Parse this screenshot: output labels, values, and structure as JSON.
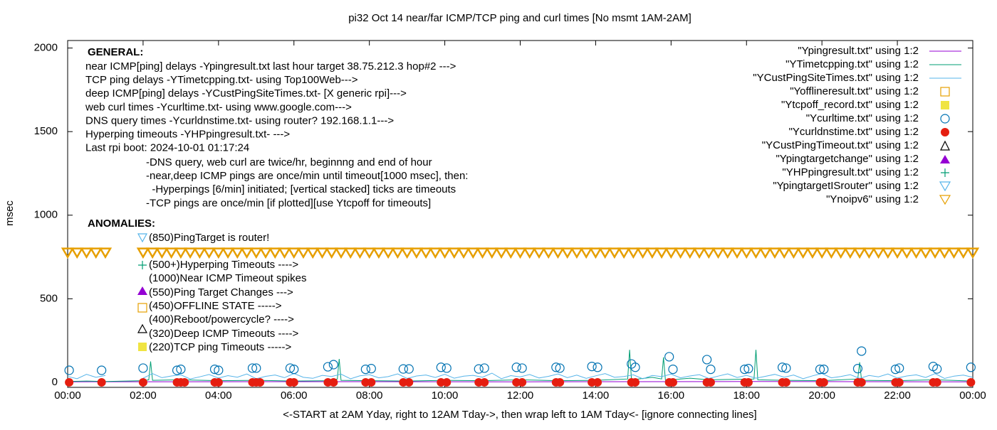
{
  "chart_data": {
    "type": "line",
    "title": "pi32 Oct 14  near/far ICMP/TCP ping and curl times [No msmt 1AM-2AM]",
    "xlabel": "<-START at 2AM Yday, right to 12AM Tday->, then wrap left to 1AM Tday<- [ignore connecting lines]",
    "ylabel": "msec",
    "xlim": [
      0,
      24
    ],
    "ylim": [
      -30,
      2045
    ],
    "xticks": [
      {
        "value": 0,
        "label": "00:00"
      },
      {
        "value": 2,
        "label": "02:00"
      },
      {
        "value": 4,
        "label": "04:00"
      },
      {
        "value": 6,
        "label": "06:00"
      },
      {
        "value": 8,
        "label": "08:00"
      },
      {
        "value": 10,
        "label": "10:00"
      },
      {
        "value": 12,
        "label": "12:00"
      },
      {
        "value": 14,
        "label": "14:00"
      },
      {
        "value": 16,
        "label": "16:00"
      },
      {
        "value": 18,
        "label": "18:00"
      },
      {
        "value": 20,
        "label": "20:00"
      },
      {
        "value": 22,
        "label": "22:00"
      },
      {
        "value": 24,
        "label": "00:00"
      }
    ],
    "yticks": [
      0,
      500,
      1000,
      1500,
      2000
    ],
    "annotations": {
      "general_heading": "GENERAL:",
      "general_lines": [
        "near ICMP[ping] delays -Ypingresult.txt last hour target 38.75.212.3 hop#2 --->",
        "TCP ping delays -YTimetcpping.txt- using Top100Web--->",
        "deep ICMP[ping] delays -YCustPingSiteTimes.txt- [X generic rpi]--->",
        "web curl times -Ycurltime.txt- using www.google.com--->",
        "DNS query times -Ycurldnstime.txt- using router? 192.168.1.1--->",
        "Hyperping timeouts -YHPpingresult.txt- --->",
        "Last rpi boot: 2024-10-01 01:17:24"
      ],
      "notes": [
        "-DNS query, web curl are twice/hr, beginnng and end of hour",
        "-near,deep ICMP pings are once/min until timeout[1000 msec], then:",
        "  -Hyperpings [6/min] initiated; [vertical stacked] ticks are timeouts",
        "-TCP pings are once/min [if plotted][use Ytcpoff for timeouts]"
      ],
      "anomalies_heading": "ANOMALIES:",
      "anomalies": [
        "(850)PingTarget is router!",
        "(500+)Hyperping Timeouts ---->",
        "(1000)Near ICMP Timeout spikes",
        "(550)Ping Target Changes --->",
        "(450)OFFLINE STATE ----->",
        "(400)Reboot/powercycle? ---->",
        "(320)Deep ICMP Timeouts ---->",
        "(220)TCP ping Timeouts ----->"
      ]
    },
    "series": [
      {
        "name": "\"Ypingresult.txt\" using 1:2",
        "color": "#9400d3",
        "style": "lines",
        "x": [
          0,
          6,
          12,
          18,
          24
        ],
        "values": [
          3,
          4,
          3,
          5,
          3
        ]
      },
      {
        "name": "\"YTimetcpping.txt\" using 1:2",
        "color": "#009e73",
        "style": "lines",
        "x": [
          0,
          0.5,
          1,
          2,
          2.15,
          2.2,
          2.25,
          3,
          4,
          5,
          6,
          7,
          7.15,
          7.2,
          7.25,
          8,
          9,
          10,
          11,
          12,
          13,
          14,
          14.85,
          14.9,
          14.95,
          15.5,
          15.75,
          15.8,
          15.85,
          16.5,
          17,
          18.2,
          18.25,
          18.3,
          19,
          20,
          20.95,
          21,
          21.05,
          22,
          23,
          24
        ],
        "values": [
          5,
          8,
          5,
          10,
          15,
          125,
          12,
          15,
          10,
          12,
          8,
          10,
          20,
          140,
          12,
          10,
          8,
          12,
          10,
          15,
          10,
          12,
          20,
          195,
          15,
          30,
          20,
          150,
          12,
          25,
          15,
          20,
          195,
          15,
          12,
          10,
          20,
          120,
          12,
          10,
          15,
          8
        ]
      },
      {
        "name": "\"YCustPingSiteTimes.txt\" using 1:2",
        "color": "#56b4e9",
        "style": "lines",
        "x": [
          0,
          0.25,
          0.5,
          0.75,
          1,
          1.25,
          1.5,
          1.75,
          2,
          2.25,
          2.5,
          2.75,
          3,
          3.25,
          3.5,
          3.75,
          4,
          4.25,
          4.5,
          4.75,
          5,
          5.25,
          5.5,
          5.75,
          6,
          6.25,
          6.5,
          6.75,
          7,
          7.25,
          7.5,
          7.75,
          8,
          8.25,
          8.5,
          8.75,
          9,
          9.25,
          9.5,
          9.75,
          10,
          10.25,
          10.5,
          10.75,
          11,
          11.25,
          11.5,
          11.75,
          12,
          12.25,
          12.5,
          12.75,
          13,
          13.25,
          13.5,
          13.75,
          14,
          14.25,
          14.5,
          14.75,
          15,
          15.25,
          15.5,
          15.75,
          16,
          16.25,
          16.5,
          16.75,
          17,
          17.25,
          17.5,
          17.75,
          18,
          18.25,
          18.5,
          18.75,
          19,
          19.25,
          19.5,
          19.75,
          20,
          20.25,
          20.5,
          20.75,
          21,
          21.25,
          21.5,
          21.75,
          22,
          22.25,
          22.5,
          22.75,
          23,
          23.25,
          23.5,
          23.75,
          24
        ],
        "values": [
          35,
          22,
          48,
          30,
          41,
          null,
          null,
          null,
          25,
          52,
          28,
          38,
          45,
          20,
          33,
          47,
          26,
          40,
          31,
          50,
          22,
          36,
          44,
          28,
          53,
          30,
          24,
          42,
          35,
          49,
          21,
          39,
          46,
          27,
          34,
          51,
          23,
          38,
          44,
          29,
          48,
          25,
          37,
          42,
          31,
          55,
          22,
          40,
          33,
          47,
          26,
          36,
          50,
          28,
          43,
          24,
          39,
          52,
          30,
          35,
          45,
          21,
          41,
          34,
          49,
          27,
          38,
          46,
          23,
          37,
          51,
          29,
          42,
          25,
          36,
          48,
          31,
          44,
          22,
          39,
          53,
          27,
          35,
          46,
          24,
          41,
          33,
          50,
          26,
          38,
          45,
          29,
          52,
          23,
          37,
          43,
          30
        ]
      },
      {
        "name": "\"Yofflineresult.txt\" using 1:2",
        "color": "#e69f00",
        "style": "square-open",
        "x": [],
        "values": []
      },
      {
        "name": "\"Ytcpoff_record.txt\" using 1:2",
        "color": "#f0e442",
        "style": "square",
        "x": [],
        "values": []
      },
      {
        "name": "\"Ycurltime.txt\" using 1:2",
        "color": "#0072b2",
        "style": "circle-open",
        "x": [
          0.04,
          0.9,
          2.0,
          2.9,
          3.0,
          3.9,
          4.0,
          4.9,
          5.0,
          5.9,
          6.0,
          6.9,
          7.05,
          7.9,
          8.05,
          8.9,
          9.05,
          9.9,
          10.05,
          10.9,
          11.05,
          11.9,
          12.05,
          12.95,
          13.05,
          13.9,
          14.05,
          14.95,
          15.05,
          15.95,
          16.05,
          16.95,
          17.05,
          17.95,
          18.05,
          18.95,
          19.05,
          19.95,
          20.05,
          20.95,
          21.05,
          21.95,
          22.05,
          22.95,
          23.05,
          23.95
        ],
        "values": [
          72,
          72,
          85,
          72,
          78,
          78,
          72,
          85,
          85,
          85,
          78,
          93,
          106,
          78,
          82,
          80,
          80,
          90,
          85,
          80,
          85,
          90,
          85,
          90,
          85,
          95,
          90,
          110,
          90,
          153,
          78,
          136,
          78,
          78,
          82,
          90,
          85,
          78,
          78,
          82,
          187,
          78,
          85,
          95,
          80,
          90
        ]
      },
      {
        "name": "\"Ycurldnstime.txt\" using 1:2",
        "color": "#e51e10",
        "style": "circle",
        "x": [
          0.04,
          0.9,
          2.0,
          2.9,
          3.0,
          3.1,
          3.9,
          4.0,
          4.9,
          5.0,
          5.1,
          5.9,
          6.0,
          6.9,
          7.05,
          7.9,
          8.05,
          8.9,
          9.05,
          9.9,
          10.05,
          10.9,
          11.05,
          11.9,
          12.05,
          12.95,
          13.05,
          13.9,
          14.05,
          14.95,
          15.05,
          15.95,
          16.05,
          16.95,
          17.05,
          17.95,
          18.05,
          18.95,
          19.05,
          19.95,
          20.05,
          20.95,
          21.05,
          21.95,
          22.05,
          22.95,
          23.05,
          23.95
        ],
        "values": [
          0,
          0,
          0,
          0,
          0,
          0,
          0,
          0,
          0,
          0,
          0,
          0,
          0,
          0,
          0,
          0,
          0,
          0,
          0,
          0,
          0,
          0,
          0,
          0,
          0,
          0,
          0,
          0,
          0,
          0,
          0,
          0,
          0,
          0,
          0,
          0,
          0,
          0,
          0,
          0,
          0,
          0,
          0,
          0,
          0,
          0,
          0,
          0
        ]
      },
      {
        "name": "\"YCustPingTimeout.txt\" using 1:2",
        "color": "#000000",
        "style": "tri-open",
        "x": [],
        "values": []
      },
      {
        "name": "\"Ypingtargetchange\" using 1:2",
        "color": "#9400d3",
        "style": "tri",
        "x": [],
        "values": []
      },
      {
        "name": "\"YHPpingresult.txt\" using 1:2",
        "color": "#009e73",
        "style": "plus",
        "x": [],
        "values": []
      },
      {
        "name": "\"YpingtargetISrouter\" using 1:2",
        "color": "#56b4e9",
        "style": "dtri-open",
        "x": [],
        "values": []
      },
      {
        "name": "\"Ynoipv6\" using 1:2",
        "color": "#e69f00",
        "style": "dtri-open",
        "x": [
          0,
          0.25,
          0.5,
          0.75,
          1,
          2,
          2.25,
          2.5,
          2.75,
          3,
          3.25,
          3.5,
          3.75,
          4,
          4.25,
          4.5,
          4.75,
          5,
          5.25,
          5.5,
          5.75,
          6,
          6.25,
          6.5,
          6.75,
          7,
          7.25,
          7.5,
          7.75,
          8,
          8.25,
          8.5,
          8.75,
          9,
          9.25,
          9.5,
          9.75,
          10,
          10.25,
          10.5,
          10.75,
          11,
          11.25,
          11.5,
          11.75,
          12,
          12.25,
          12.5,
          12.75,
          13,
          13.25,
          13.5,
          13.75,
          14,
          14.25,
          14.5,
          14.75,
          15,
          15.25,
          15.5,
          15.75,
          16,
          16.25,
          16.5,
          16.75,
          17,
          17.25,
          17.5,
          17.75,
          18,
          18.25,
          18.5,
          18.75,
          19,
          19.25,
          19.5,
          19.75,
          20,
          20.25,
          20.5,
          20.75,
          21,
          21.25,
          21.5,
          21.75,
          22,
          22.25,
          22.5,
          22.75,
          23,
          23.25,
          23.5,
          23.75,
          24
        ],
        "values": [
          775,
          775,
          775,
          775,
          775,
          775,
          775,
          775,
          775,
          775,
          775,
          775,
          775,
          775,
          775,
          775,
          775,
          775,
          775,
          775,
          775,
          775,
          775,
          775,
          775,
          775,
          775,
          775,
          775,
          775,
          775,
          775,
          775,
          775,
          775,
          775,
          775,
          775,
          775,
          775,
          775,
          775,
          775,
          775,
          775,
          775,
          775,
          775,
          775,
          775,
          775,
          775,
          775,
          775,
          775,
          775,
          775,
          775,
          775,
          775,
          775,
          775,
          775,
          775,
          775,
          775,
          775,
          775,
          775,
          775,
          775,
          775,
          775,
          775,
          775,
          775,
          775,
          775,
          775,
          775,
          775,
          775,
          775,
          775,
          775,
          775,
          775,
          775,
          775,
          775,
          775,
          775,
          775,
          775
        ]
      }
    ]
  }
}
